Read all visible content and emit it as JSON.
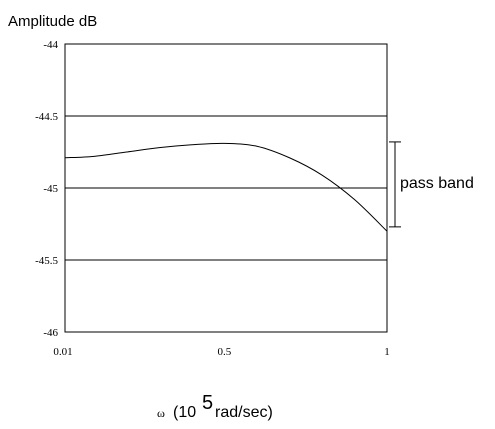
{
  "chart_data": {
    "type": "line",
    "ylabel": "Amplitude dB",
    "xlabel_symbol": "ω",
    "xlabel_open": "(10",
    "xlabel_exponent": "5",
    "xlabel_unit": "rad/sec)",
    "ylim": [
      -46,
      -44
    ],
    "yticks": [
      {
        "value": -44,
        "label": "-44"
      },
      {
        "value": -44.5,
        "label": "-44.5"
      },
      {
        "value": -45,
        "label": "-45"
      },
      {
        "value": -45.5,
        "label": "-45.5"
      },
      {
        "value": -46,
        "label": "-46"
      }
    ],
    "xlim": [
      0.01,
      1
    ],
    "xticks": [
      {
        "value": 0.01,
        "label": "0.01"
      },
      {
        "value": 0.5,
        "label": "0.5"
      },
      {
        "value": 1,
        "label": "1"
      }
    ],
    "grid_y": [
      -44.5,
      -45,
      -45.5
    ],
    "series": [
      {
        "color": "#000000",
        "x": [
          0.01,
          0.1,
          0.2,
          0.3,
          0.4,
          0.5,
          0.6,
          0.7,
          0.8,
          0.9,
          1.0
        ],
        "y": [
          -44.79,
          -44.78,
          -44.75,
          -44.72,
          -44.7,
          -44.69,
          -44.71,
          -44.79,
          -44.91,
          -45.08,
          -45.3
        ]
      }
    ],
    "annotation": {
      "label": "pass band",
      "from": -44.68,
      "to": -45.27
    }
  }
}
